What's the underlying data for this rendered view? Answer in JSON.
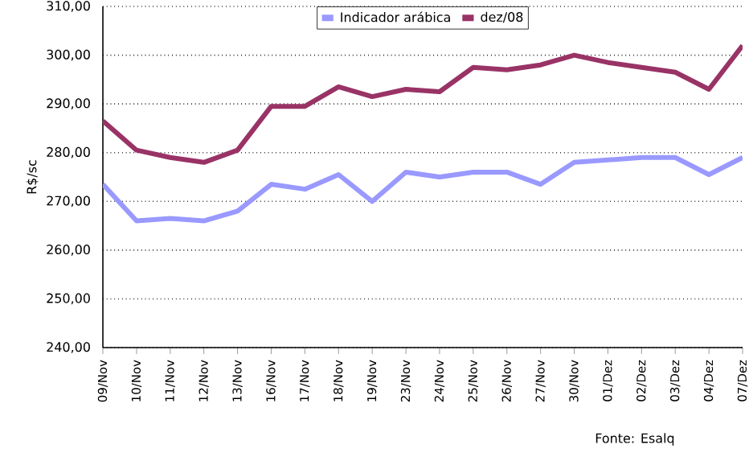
{
  "chart_data": {
    "type": "line",
    "ylabel": "R$/sc",
    "categories": [
      "09/Nov",
      "10/Nov",
      "11/Nov",
      "12/Nov",
      "13/Nov",
      "16/Nov",
      "17/Nov",
      "18/Nov",
      "19/Nov",
      "23/Nov",
      "24/Nov",
      "25/Nov",
      "26/Nov",
      "27/Nov",
      "30/Nov",
      "01/Dez",
      "02/Dez",
      "03/Dez",
      "04/Dez",
      "07/Dez"
    ],
    "series": [
      {
        "name": "Indicador arábica",
        "color": "#9999ff",
        "values": [
          273.5,
          266,
          266.5,
          266,
          268,
          273.5,
          272.5,
          275.5,
          270,
          276,
          275,
          276,
          276,
          273.5,
          278,
          278.5,
          279,
          279,
          275.5,
          279
        ]
      },
      {
        "name": "dez/08",
        "color": "#993366",
        "values": [
          286.5,
          280.5,
          279,
          278,
          280.5,
          289.5,
          289.5,
          293.5,
          291.5,
          293,
          292.5,
          297.5,
          297,
          298,
          300,
          298.5,
          297.5,
          296.5,
          293,
          302
        ]
      }
    ],
    "ylim": [
      240,
      310
    ],
    "yticks": [
      {
        "value": 240,
        "label": "240,00"
      },
      {
        "value": 250,
        "label": "250,00"
      },
      {
        "value": 260,
        "label": "260,00"
      },
      {
        "value": 270,
        "label": "270,00"
      },
      {
        "value": 280,
        "label": "280,00"
      },
      {
        "value": 290,
        "label": "290,00"
      },
      {
        "value": 300,
        "label": "300,00"
      },
      {
        "value": 310,
        "label": "310,00"
      }
    ],
    "grid": "y",
    "legend": "top",
    "marker": "none",
    "line_style": "solid",
    "annotations": [
      "Fonte: Esalq"
    ]
  }
}
